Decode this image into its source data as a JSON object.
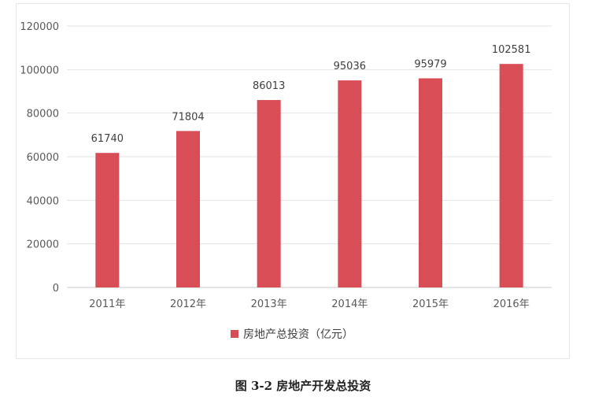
{
  "caption": "图 3-2  房地产开发总投资",
  "colors": {
    "bar": "#d94d57",
    "grid": "#e3e3e3",
    "axis": "#c8c8c8"
  },
  "chart_data": {
    "type": "bar",
    "categories": [
      "2011年",
      "2012年",
      "2013年",
      "2014年",
      "2015年",
      "2016年"
    ],
    "series": [
      {
        "name": "房地产总投资（亿元）",
        "values": [
          61740,
          71804,
          86013,
          95036,
          95979,
          102581
        ]
      }
    ],
    "value_labels": [
      "61740",
      "71804",
      "86013",
      "95036",
      "95979",
      "102581"
    ],
    "y_ticks": [
      "0",
      "20000",
      "40000",
      "60000",
      "80000",
      "100000",
      "120000"
    ],
    "ylim": [
      0,
      120000
    ],
    "title": "",
    "xlabel": "",
    "ylabel": "",
    "grid": true,
    "legend_position": "bottom"
  }
}
